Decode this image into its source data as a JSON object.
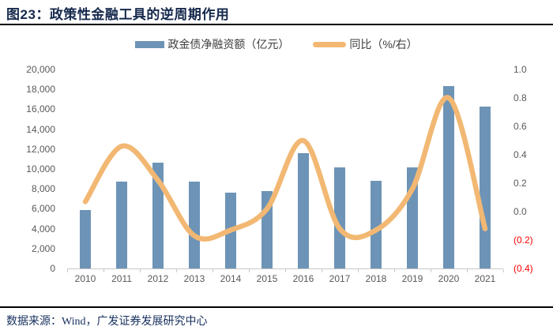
{
  "header": {
    "title": "图23：政策性金融工具的逆周期作用"
  },
  "legend": {
    "bar_label": "政金债净融资额（亿元）",
    "line_label": "同比（%/右）"
  },
  "footer": {
    "source": "数据来源：Wind，广发证券发展研究中心"
  },
  "colors": {
    "bar": "#6d94b6",
    "line": "#f2b873",
    "title_text": "#16294d",
    "source_text": "#17305e",
    "rule": "#000000",
    "axis_text": "#595959",
    "legend_text": "#3d3d3d",
    "negative_tick_text": "#ff0000",
    "axis_line": "#c9c9c9"
  },
  "chart_data": {
    "type": "bar",
    "subtype": "bar+line combo",
    "categories": [
      "2010",
      "2011",
      "2012",
      "2013",
      "2014",
      "2015",
      "2016",
      "2017",
      "2018",
      "2019",
      "2020",
      "2021"
    ],
    "series": [
      {
        "name": "政金债净融资额（亿元）",
        "type": "bar",
        "axis": "left",
        "values": [
          5900,
          8700,
          10600,
          8700,
          7600,
          7750,
          11600,
          10150,
          8800,
          10150,
          18300,
          16300
        ]
      },
      {
        "name": "同比（%/右）",
        "type": "line",
        "axis": "right",
        "values": [
          0.07,
          0.46,
          0.22,
          -0.17,
          -0.13,
          0.02,
          0.5,
          -0.12,
          -0.13,
          0.16,
          0.8,
          -0.12
        ]
      }
    ],
    "left_axis": {
      "min": 0,
      "max": 20000,
      "step": 2000,
      "tick_labels": [
        "20,000",
        "18,000",
        "16,000",
        "14,000",
        "12,000",
        "10,000",
        "8,000",
        "6,000",
        "4,000",
        "2,000",
        "0"
      ]
    },
    "right_axis": {
      "min": -0.4,
      "max": 1.0,
      "step": 0.2,
      "tick_labels": [
        "1.0",
        "0.8",
        "0.6",
        "0.4",
        "0.2",
        "0.0",
        "(0.2)",
        "(0.4)"
      ],
      "negative_labels_red": true
    },
    "grid": false,
    "legend_position": "top",
    "xlabel": "",
    "ylabel_left": "亿元",
    "ylabel_right": "%"
  }
}
